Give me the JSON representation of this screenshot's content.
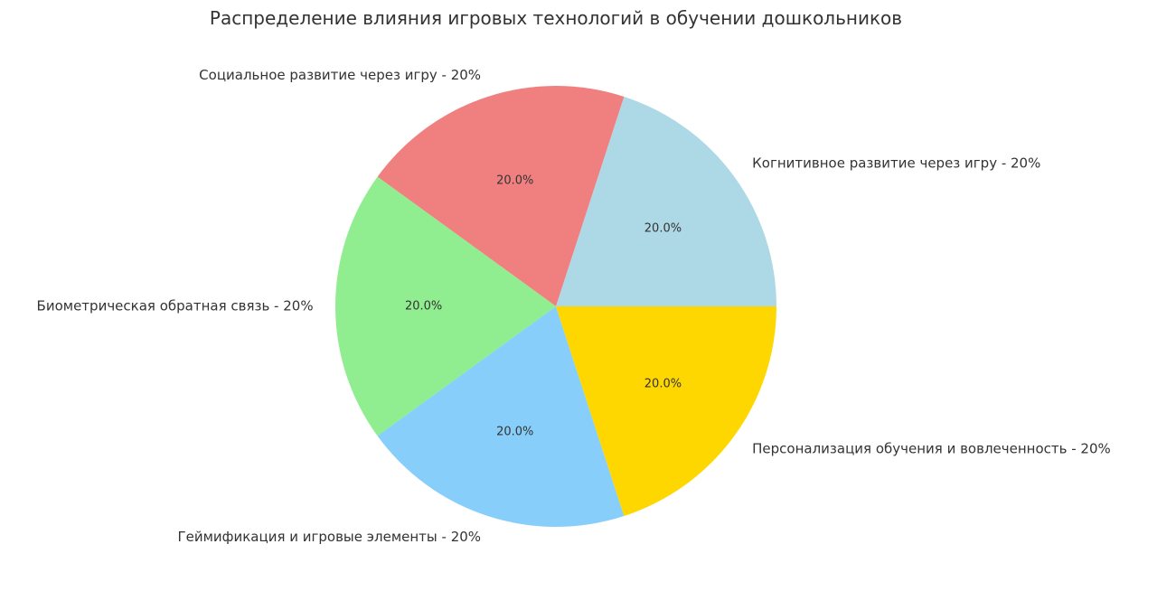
{
  "chart_data": {
    "type": "pie",
    "title": "Распределение влияния игровых технологий в обучении дошкольников",
    "start_angle_deg": 0,
    "direction": "counterclockwise",
    "slices": [
      {
        "label": "Когнитивное развитие через игру - 20%",
        "value": 20,
        "pct_label": "20.0%",
        "color": "#ADD8E6"
      },
      {
        "label": "Социальное развитие через игру - 20%",
        "value": 20,
        "pct_label": "20.0%",
        "color": "#F08080"
      },
      {
        "label": "Биометрическая обратная связь - 20%",
        "value": 20,
        "pct_label": "20.0%",
        "color": "#90EE90"
      },
      {
        "label": "Геймификация и игровые элементы - 20%",
        "value": 20,
        "pct_label": "20.0%",
        "color": "#87CEFA"
      },
      {
        "label": "Персонализация обучения и вовлеченность - 20%",
        "value": 20,
        "pct_label": "20.0%",
        "color": "#FFD700"
      }
    ]
  }
}
